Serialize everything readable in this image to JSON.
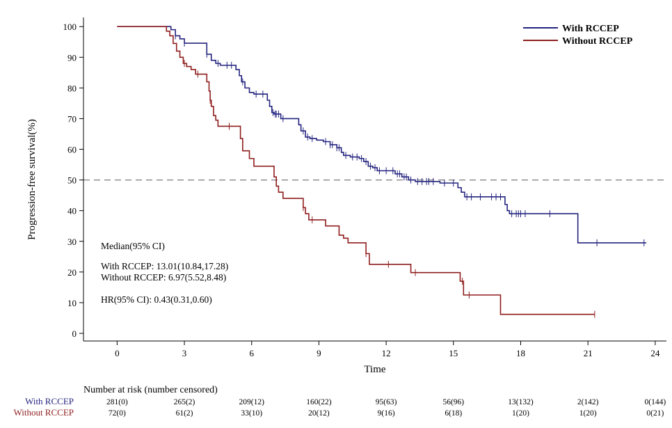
{
  "chart_data": {
    "type": "line",
    "subtype": "kaplan-meier",
    "title": "",
    "xlabel": "Time",
    "ylabel": "Progression-free survival(%)",
    "xlim": [
      -1.5,
      24.5
    ],
    "ylim": [
      -2.5,
      103
    ],
    "xticks": [
      0,
      3,
      6,
      9,
      12,
      15,
      18,
      21,
      24
    ],
    "yticks": [
      0,
      10,
      20,
      30,
      40,
      50,
      60,
      70,
      80,
      90,
      100
    ],
    "reference_line": {
      "y": 50,
      "style": "dashed",
      "color": "#7a7a7a"
    },
    "legend": {
      "position": "top-right",
      "entries": [
        "With RCCEP",
        "Without RCCEP"
      ]
    },
    "series": [
      {
        "name": "With RCCEP",
        "color": "#23237f",
        "step": "post",
        "points": [
          [
            0,
            100
          ],
          [
            2.2,
            100
          ],
          [
            2.4,
            99
          ],
          [
            2.6,
            97
          ],
          [
            2.8,
            96
          ],
          [
            3.0,
            94.6
          ],
          [
            3.9,
            94.6
          ],
          [
            4.0,
            91
          ],
          [
            4.2,
            89
          ],
          [
            4.4,
            88
          ],
          [
            4.6,
            87.4
          ],
          [
            5.2,
            87.4
          ],
          [
            5.3,
            86
          ],
          [
            5.45,
            84
          ],
          [
            5.55,
            82
          ],
          [
            5.7,
            80
          ],
          [
            5.9,
            78.5
          ],
          [
            6.1,
            78
          ],
          [
            6.6,
            78
          ],
          [
            6.7,
            76
          ],
          [
            6.8,
            74
          ],
          [
            6.9,
            72
          ],
          [
            7.0,
            71.5
          ],
          [
            7.3,
            70
          ],
          [
            8.0,
            70
          ],
          [
            8.1,
            68
          ],
          [
            8.2,
            66
          ],
          [
            8.4,
            64
          ],
          [
            8.6,
            63.5
          ],
          [
            8.9,
            63
          ],
          [
            9.2,
            62.5
          ],
          [
            9.5,
            61.5
          ],
          [
            9.8,
            60.5
          ],
          [
            10.0,
            59
          ],
          [
            10.1,
            58
          ],
          [
            10.4,
            57.5
          ],
          [
            10.8,
            57
          ],
          [
            11.0,
            56
          ],
          [
            11.2,
            54.5
          ],
          [
            11.4,
            54
          ],
          [
            11.6,
            53
          ],
          [
            12.2,
            53
          ],
          [
            12.4,
            52
          ],
          [
            12.7,
            51
          ],
          [
            13.0,
            50
          ],
          [
            13.3,
            49.5
          ],
          [
            14.3,
            49.5
          ],
          [
            14.4,
            49
          ],
          [
            15.1,
            49
          ],
          [
            15.2,
            47.5
          ],
          [
            15.35,
            46
          ],
          [
            15.5,
            44.5
          ],
          [
            17.2,
            44.5
          ],
          [
            17.3,
            42
          ],
          [
            17.4,
            40
          ],
          [
            17.5,
            39
          ],
          [
            20.5,
            39
          ],
          [
            20.55,
            29.5
          ],
          [
            23.6,
            29.5
          ]
        ],
        "censor_times": [
          2.6,
          3.0,
          4.0,
          4.5,
          4.9,
          5.1,
          5.6,
          6.2,
          6.5,
          6.95,
          7.05,
          7.1,
          7.2,
          7.4,
          8.3,
          8.5,
          8.7,
          9.3,
          9.5,
          9.6,
          9.8,
          9.9,
          10.2,
          10.5,
          10.7,
          10.9,
          11.1,
          11.3,
          11.5,
          11.7,
          12.0,
          12.3,
          12.5,
          12.6,
          12.8,
          12.9,
          13.1,
          13.4,
          13.6,
          13.8,
          13.9,
          14.1,
          14.6,
          15.0,
          15.6,
          15.8,
          16.2,
          16.7,
          16.9,
          17.1,
          17.6,
          17.8,
          17.9,
          18.0,
          18.2,
          19.3,
          21.4,
          23.5
        ]
      },
      {
        "name": "Without RCCEP",
        "color": "#8f1d1d",
        "step": "post",
        "points": [
          [
            0,
            100
          ],
          [
            2.0,
            100
          ],
          [
            2.2,
            98.5
          ],
          [
            2.35,
            97
          ],
          [
            2.5,
            94.5
          ],
          [
            2.65,
            92
          ],
          [
            2.8,
            90
          ],
          [
            2.95,
            88
          ],
          [
            3.1,
            87
          ],
          [
            3.3,
            86
          ],
          [
            3.5,
            84.5
          ],
          [
            3.9,
            84.5
          ],
          [
            4.0,
            82
          ],
          [
            4.1,
            79
          ],
          [
            4.15,
            76
          ],
          [
            4.2,
            74
          ],
          [
            4.3,
            71
          ],
          [
            4.4,
            69.5
          ],
          [
            4.5,
            67.5
          ],
          [
            5.4,
            67.5
          ],
          [
            5.5,
            63.5
          ],
          [
            5.6,
            59.5
          ],
          [
            5.9,
            57
          ],
          [
            6.1,
            54.5
          ],
          [
            6.9,
            54.5
          ],
          [
            7.0,
            51
          ],
          [
            7.1,
            48
          ],
          [
            7.2,
            46
          ],
          [
            7.4,
            44
          ],
          [
            8.2,
            44
          ],
          [
            8.3,
            41
          ],
          [
            8.4,
            39
          ],
          [
            8.55,
            37
          ],
          [
            9.2,
            37
          ],
          [
            9.3,
            35
          ],
          [
            9.8,
            35
          ],
          [
            9.9,
            32
          ],
          [
            10.1,
            31
          ],
          [
            10.3,
            29.5
          ],
          [
            11.0,
            29.5
          ],
          [
            11.1,
            26
          ],
          [
            11.25,
            22.5
          ],
          [
            13.0,
            22.5
          ],
          [
            13.1,
            19.8
          ],
          [
            15.2,
            19.8
          ],
          [
            15.3,
            17
          ],
          [
            15.45,
            12.5
          ],
          [
            17.0,
            12.5
          ],
          [
            17.1,
            6.2
          ],
          [
            21.3,
            6.2
          ]
        ],
        "censor_times": [
          3.0,
          3.6,
          4.15,
          5.0,
          8.3,
          8.7,
          11.1,
          12.1,
          13.3,
          15.4,
          15.7,
          21.3
        ]
      }
    ],
    "annotations": {
      "median_header": "Median(95% CI)",
      "median_with": "With RCCEP: 13.01(10.84,17.28)",
      "median_without": "Without RCCEP: 6.97(5.52,8.48)",
      "hr": "HR(95% CI): 0.43(0.31,0.60)"
    },
    "risk_table": {
      "title": "Number at risk (number censored)",
      "times": [
        0,
        3,
        6,
        9,
        12,
        15,
        18,
        21,
        24
      ],
      "rows": [
        {
          "label": "With RCCEP",
          "color": "#23237f",
          "values": [
            "281(0)",
            "265(2)",
            "209(12)",
            "160(22)",
            "95(63)",
            "56(96)",
            "13(132)",
            "2(142)",
            "0(144)"
          ]
        },
        {
          "label": "Without RCCEP",
          "color": "#8f1d1d",
          "values": [
            "72(0)",
            "61(2)",
            "33(10)",
            "20(12)",
            "9(16)",
            "6(18)",
            "1(20)",
            "1(20)",
            "0(21)"
          ]
        }
      ]
    }
  }
}
